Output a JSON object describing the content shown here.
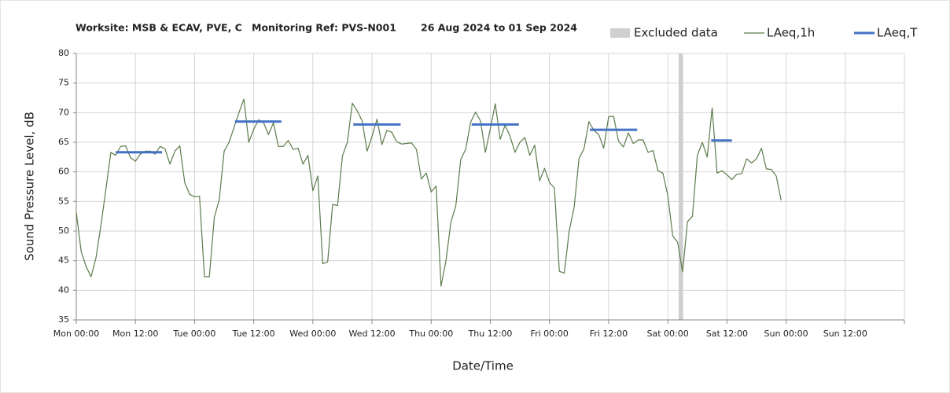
{
  "chart_data": {
    "type": "line",
    "title": [
      "Worksite: MSB & ECAV, PVE, C",
      "Monitoring Ref: PVS-N001",
      "26 Aug 2024 to 01 Sep 2024"
    ],
    "xlabel": "Date/Time",
    "ylabel": "Sound Pressure Level, dB",
    "xlim": [
      0,
      168
    ],
    "ylim": [
      35,
      80
    ],
    "yticks": [
      35,
      40,
      45,
      50,
      55,
      60,
      65,
      70,
      75,
      80
    ],
    "xticks": [
      {
        "value": 0,
        "label": "Mon 00:00"
      },
      {
        "value": 12,
        "label": "Mon 12:00"
      },
      {
        "value": 24,
        "label": "Tue 00:00"
      },
      {
        "value": 36,
        "label": "Tue 12:00"
      },
      {
        "value": 48,
        "label": "Wed 00:00"
      },
      {
        "value": 60,
        "label": "Wed 12:00"
      },
      {
        "value": 72,
        "label": "Thu 00:00"
      },
      {
        "value": 84,
        "label": "Thu 12:00"
      },
      {
        "value": 96,
        "label": "Fri 00:00"
      },
      {
        "value": 108,
        "label": "Fri 12:00"
      },
      {
        "value": 120,
        "label": "Sat 00:00"
      },
      {
        "value": 132,
        "label": "Sat 12:00"
      },
      {
        "value": 144,
        "label": "Sun 00:00"
      },
      {
        "value": 156,
        "label": "Sun 12:00"
      }
    ],
    "grid": true,
    "legend": "top-right",
    "excluded": {
      "name": "Excluded data",
      "color": "#cfcfcf",
      "x": [
        122.2,
        123.1
      ]
    },
    "series": [
      {
        "name": "LAeq,1h",
        "color": "#5b7b4b",
        "x": [
          0,
          1,
          2,
          3,
          4,
          5,
          6,
          7,
          8,
          9,
          10,
          11,
          12,
          13,
          14,
          15,
          16,
          17,
          18,
          19,
          20,
          21,
          22,
          23,
          24,
          25,
          26,
          27,
          28,
          29,
          30,
          31,
          32,
          33,
          34,
          35,
          36,
          37,
          38,
          39,
          40,
          41,
          42,
          43,
          44,
          45,
          46,
          47,
          48,
          49,
          50,
          51,
          52,
          53,
          54,
          55,
          56,
          57,
          58,
          59,
          60,
          61,
          62,
          63,
          64,
          65,
          66,
          67,
          68,
          69,
          70,
          71,
          72,
          73,
          74,
          75,
          76,
          77,
          78,
          79,
          80,
          81,
          82,
          83,
          84,
          85,
          86,
          87,
          88,
          89,
          90,
          91,
          92,
          93,
          94,
          95,
          96,
          97,
          98,
          99,
          100,
          101,
          102,
          103,
          104,
          105,
          106,
          107,
          108,
          109,
          110,
          111,
          112,
          113,
          114,
          115,
          116,
          117,
          118,
          119,
          120,
          121,
          122,
          123,
          124,
          125,
          126,
          127,
          128,
          129,
          130,
          131,
          132,
          133,
          134,
          135,
          136,
          137,
          138,
          139,
          140,
          141,
          142,
          143
        ],
        "values": [
          53.2,
          46.5,
          44,
          42.3,
          45.5,
          51,
          57,
          63.3,
          62.8,
          64.3,
          64.4,
          62.4,
          61.8,
          63,
          63.5,
          63.5,
          63,
          64.3,
          63.9,
          61.3,
          63.5,
          64.4,
          58.2,
          56.2,
          55.8,
          55.9,
          42.3,
          42.3,
          52.3,
          55.3,
          63.5,
          65,
          67.5,
          70,
          72.3,
          65,
          67.2,
          68.8,
          68.3,
          66.3,
          68.3,
          64.3,
          64.3,
          65.3,
          63.8,
          64,
          61.3,
          62.8,
          56.8,
          59.3,
          44.5,
          44.8,
          54.5,
          54.3,
          62.7,
          65,
          71.6,
          70.3,
          68.6,
          63.5,
          66,
          68.9,
          64.6,
          67,
          66.7,
          65.1,
          64.7,
          64.8,
          64.9,
          63.8,
          58.8,
          59.8,
          56.6,
          57.6,
          40.7,
          45,
          51.5,
          54.3,
          62.1,
          63.8,
          68.4,
          70.1,
          68.6,
          63.3,
          67.3,
          71.5,
          65.5,
          67.9,
          66,
          63.3,
          65,
          65.8,
          62.8,
          64.5,
          58.5,
          60.6,
          58.2,
          57.3,
          43.2,
          42.9,
          50,
          54,
          62.3,
          63.9,
          68.5,
          67,
          66.3,
          64,
          69.3,
          69.4,
          65.2,
          64.2,
          66.6,
          64.8,
          65.4,
          65.4,
          63.3,
          63.6,
          60.2,
          59.8,
          56,
          49.2,
          48.1,
          43.1,
          51.6,
          52.5,
          62.8,
          65,
          62.5,
          70.8,
          59.8,
          60.2,
          59.5,
          58.7,
          59.6,
          59.7,
          62.2,
          61.5,
          62.2,
          64,
          60.5,
          60.4,
          59.3,
          55.2
        ]
      },
      {
        "name": "LAeq,T",
        "color": "#4472c4",
        "segments": [
          {
            "x": [
              8,
              17.4
            ],
            "value": 63.3
          },
          {
            "x": [
              32.2,
              41.6
            ],
            "value": 68.5
          },
          {
            "x": [
              56.2,
              65.8
            ],
            "value": 68
          },
          {
            "x": [
              80.2,
              89.8
            ],
            "value": 68
          },
          {
            "x": [
              104.2,
              113.8
            ],
            "value": 67.1
          },
          {
            "x": [
              128.8,
              133
            ],
            "value": 65.3
          }
        ]
      }
    ]
  }
}
